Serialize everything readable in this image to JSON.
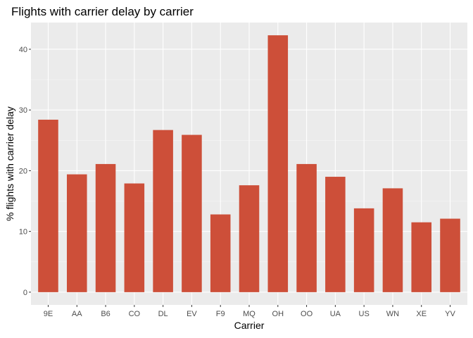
{
  "chart_data": {
    "type": "bar",
    "title": "Flights with carrier delay by carrier",
    "xlabel": "Carrier",
    "ylabel": "% flights with carrier delay",
    "categories": [
      "9E",
      "AA",
      "B6",
      "CO",
      "DL",
      "EV",
      "F9",
      "MQ",
      "OH",
      "OO",
      "UA",
      "US",
      "WN",
      "XE",
      "YV"
    ],
    "values": [
      28.4,
      19.4,
      21.1,
      17.9,
      26.7,
      25.9,
      12.8,
      17.6,
      42.3,
      21.1,
      19.0,
      13.8,
      17.1,
      11.5,
      12.1
    ],
    "yticks": [
      0,
      10,
      20,
      30,
      40
    ],
    "ylim": [
      -2.1,
      44.4
    ],
    "grid": true,
    "legend": "none",
    "colors": {
      "bar": "#cd4f39",
      "panel": "#ebebeb",
      "grid_major": "#ffffff",
      "grid_minor": "#f5f5f5"
    }
  }
}
